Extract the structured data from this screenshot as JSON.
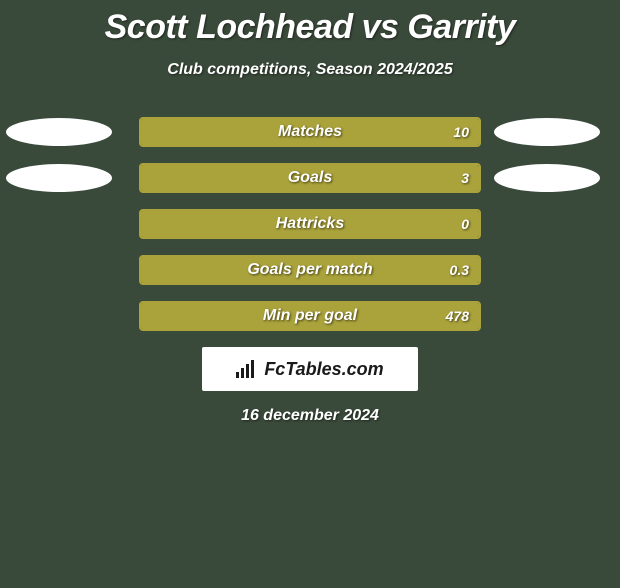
{
  "title": "Scott Lochhead vs Garrity",
  "subtitle": "Club competitions, Season 2024/2025",
  "date": "16 december 2024",
  "logo_text": "FcTables.com",
  "colors": {
    "background": "#3a4a3a",
    "bar_fill": "#aaa23a",
    "bar_border": "#aaa23a",
    "ellipse_left": "#ffffff",
    "ellipse_right": "#ffffff",
    "text": "#ffffff",
    "logo_bg": "#ffffff",
    "logo_text": "#1a1a1a"
  },
  "rows": [
    {
      "label": "Matches",
      "left_value": "",
      "right_value": "10",
      "left_pct": 0,
      "right_pct": 100,
      "show_left_ellipse": true,
      "show_right_ellipse": true
    },
    {
      "label": "Goals",
      "left_value": "",
      "right_value": "3",
      "left_pct": 0,
      "right_pct": 100,
      "show_left_ellipse": true,
      "show_right_ellipse": true
    },
    {
      "label": "Hattricks",
      "left_value": "",
      "right_value": "0",
      "left_pct": 0,
      "right_pct": 100,
      "show_left_ellipse": false,
      "show_right_ellipse": false
    },
    {
      "label": "Goals per match",
      "left_value": "",
      "right_value": "0.3",
      "left_pct": 0,
      "right_pct": 100,
      "show_left_ellipse": false,
      "show_right_ellipse": false
    },
    {
      "label": "Min per goal",
      "left_value": "",
      "right_value": "478",
      "left_pct": 0,
      "right_pct": 100,
      "show_left_ellipse": false,
      "show_right_ellipse": false
    }
  ]
}
